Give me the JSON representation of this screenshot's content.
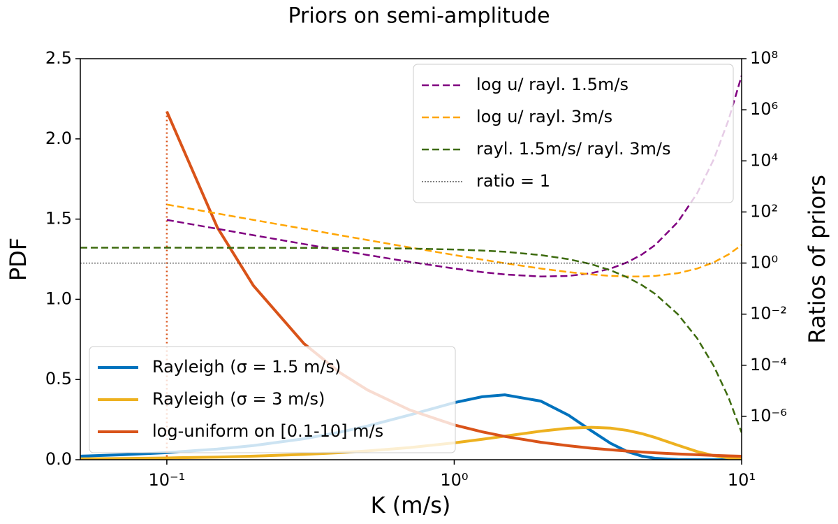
{
  "chart_data": {
    "type": "line",
    "title": "Priors on semi-amplitude",
    "xlabel": "K (m/s)",
    "ylabel": "PDF",
    "y2label": "Ratios of priors",
    "xscale": "log",
    "y2scale": "log",
    "xlim": [
      0.05,
      10
    ],
    "xticks": [
      {
        "value": 0.1,
        "label": "10⁻¹"
      },
      {
        "value": 1,
        "label": "10⁰"
      },
      {
        "value": 10,
        "label": "10¹"
      }
    ],
    "ylim": [
      0,
      2.5
    ],
    "yticks": [
      {
        "value": 0,
        "label": "0.0"
      },
      0.5,
      {
        "value": 1,
        "label": "1.0"
      },
      1.5,
      {
        "value": 2,
        "label": "2.0"
      },
      2.5
    ],
    "y2lim": [
      2e-08,
      100000000.0
    ],
    "y2ticks": [
      {
        "value": 1e-06,
        "label": "10⁻⁶"
      },
      {
        "value": 0.0001,
        "label": "10⁻⁴"
      },
      {
        "value": 0.01,
        "label": "10⁻²"
      },
      {
        "value": 1,
        "label": "10⁰"
      },
      {
        "value": 100,
        "label": "10²"
      },
      {
        "value": 10000,
        "label": "10⁴"
      },
      {
        "value": 1000000,
        "label": "10⁶"
      },
      {
        "value": 100000000,
        "label": "10⁸"
      }
    ],
    "legend": "lower left",
    "legend2": "upper right",
    "x": [
      0.05,
      0.07,
      0.1,
      0.15,
      0.2,
      0.3,
      0.4,
      0.5,
      0.7,
      1,
      1.25,
      1.5,
      2,
      2.5,
      3,
      3.5,
      4,
      4.5,
      5,
      6,
      7,
      8,
      9,
      10
    ],
    "series": [
      {
        "name": "Rayleigh (σ = 1.5 m/s)",
        "color": "#0072bd",
        "linestyle": "solid",
        "values": [
          0.0222,
          0.0311,
          0.0443,
          0.0663,
          0.0881,
          0.1307,
          0.1716,
          0.2102,
          0.279,
          0.3559,
          0.3926,
          0.4043,
          0.3654,
          0.2771,
          0.1804,
          0.1022,
          0.0508,
          0.0222,
          0.0086,
          0.0009,
          6e-05,
          0,
          0,
          0
        ]
      },
      {
        "name": "Rayleigh (σ = 3 m/s)",
        "color": "#edb120",
        "linestyle": "solid",
        "values": [
          0.00556,
          0.00778,
          0.0111,
          0.0166,
          0.0222,
          0.0332,
          0.044,
          0.0548,
          0.0757,
          0.1051,
          0.1274,
          0.1471,
          0.1779,
          0.1963,
          0.2022,
          0.1969,
          0.1827,
          0.1623,
          0.1386,
          0.0902,
          0.0511,
          0.0254,
          0.0111,
          0.0043
        ]
      },
      {
        "name": "log-uniform on [0.1-10] m/s",
        "color": "#d95319",
        "linestyle": "solid",
        "dropline": true,
        "values": [
          null,
          null,
          2.171,
          1.447,
          1.086,
          0.724,
          0.543,
          0.434,
          0.31,
          0.217,
          0.174,
          0.145,
          0.109,
          0.087,
          0.072,
          0.062,
          0.054,
          0.048,
          0.043,
          0.036,
          0.031,
          0.027,
          0.024,
          0.022
        ]
      },
      {
        "name": "log u/ rayl. 1.5m/s",
        "color": "#800080",
        "linestyle": "dashed",
        "axis": "y2",
        "values": [
          null,
          null,
          48.97,
          21.83,
          12.32,
          5.54,
          3.164,
          2.066,
          1.112,
          0.61,
          0.4425,
          0.358,
          0.297,
          0.313,
          0.401,
          0.607,
          1.069,
          2.17,
          5.06,
          40.5,
          535,
          11480,
          396000,
          21500000
        ]
      },
      {
        "name": "log u/ rayl. 3m/s",
        "color": "#ffa500",
        "linestyle": "dashed",
        "axis": "y2",
        "values": [
          null,
          null,
          195.5,
          86.95,
          48.96,
          21.82,
          12.32,
          7.926,
          4.098,
          2.066,
          1.364,
          0.984,
          0.61,
          0.4424,
          0.358,
          0.315,
          0.297,
          0.297,
          0.3134,
          0.401,
          0.607,
          1.069,
          2.171,
          5.06
        ]
      },
      {
        "name": "rayl. 1.5m/s/ rayl. 3m/s",
        "color": "#3d6b0e",
        "linestyle": "dashed",
        "axis": "y2",
        "values": [
          3.998,
          3.997,
          3.993,
          3.985,
          3.973,
          3.94,
          3.894,
          3.835,
          3.685,
          3.386,
          3.084,
          2.759,
          2.054,
          1.417,
          0.902,
          0.52,
          0.278,
          0.137,
          0.0621,
          0.00992,
          0.00114,
          9.3e-05,
          5.5e-06,
          2.3e-07
        ]
      },
      {
        "name": "ratio = 1",
        "color": "#000000",
        "linestyle": "dotted",
        "axis": "y2",
        "values": [
          1,
          1,
          1,
          1,
          1,
          1,
          1,
          1,
          1,
          1,
          1,
          1,
          1,
          1,
          1,
          1,
          1,
          1,
          1,
          1,
          1,
          1,
          1,
          1
        ]
      }
    ]
  }
}
